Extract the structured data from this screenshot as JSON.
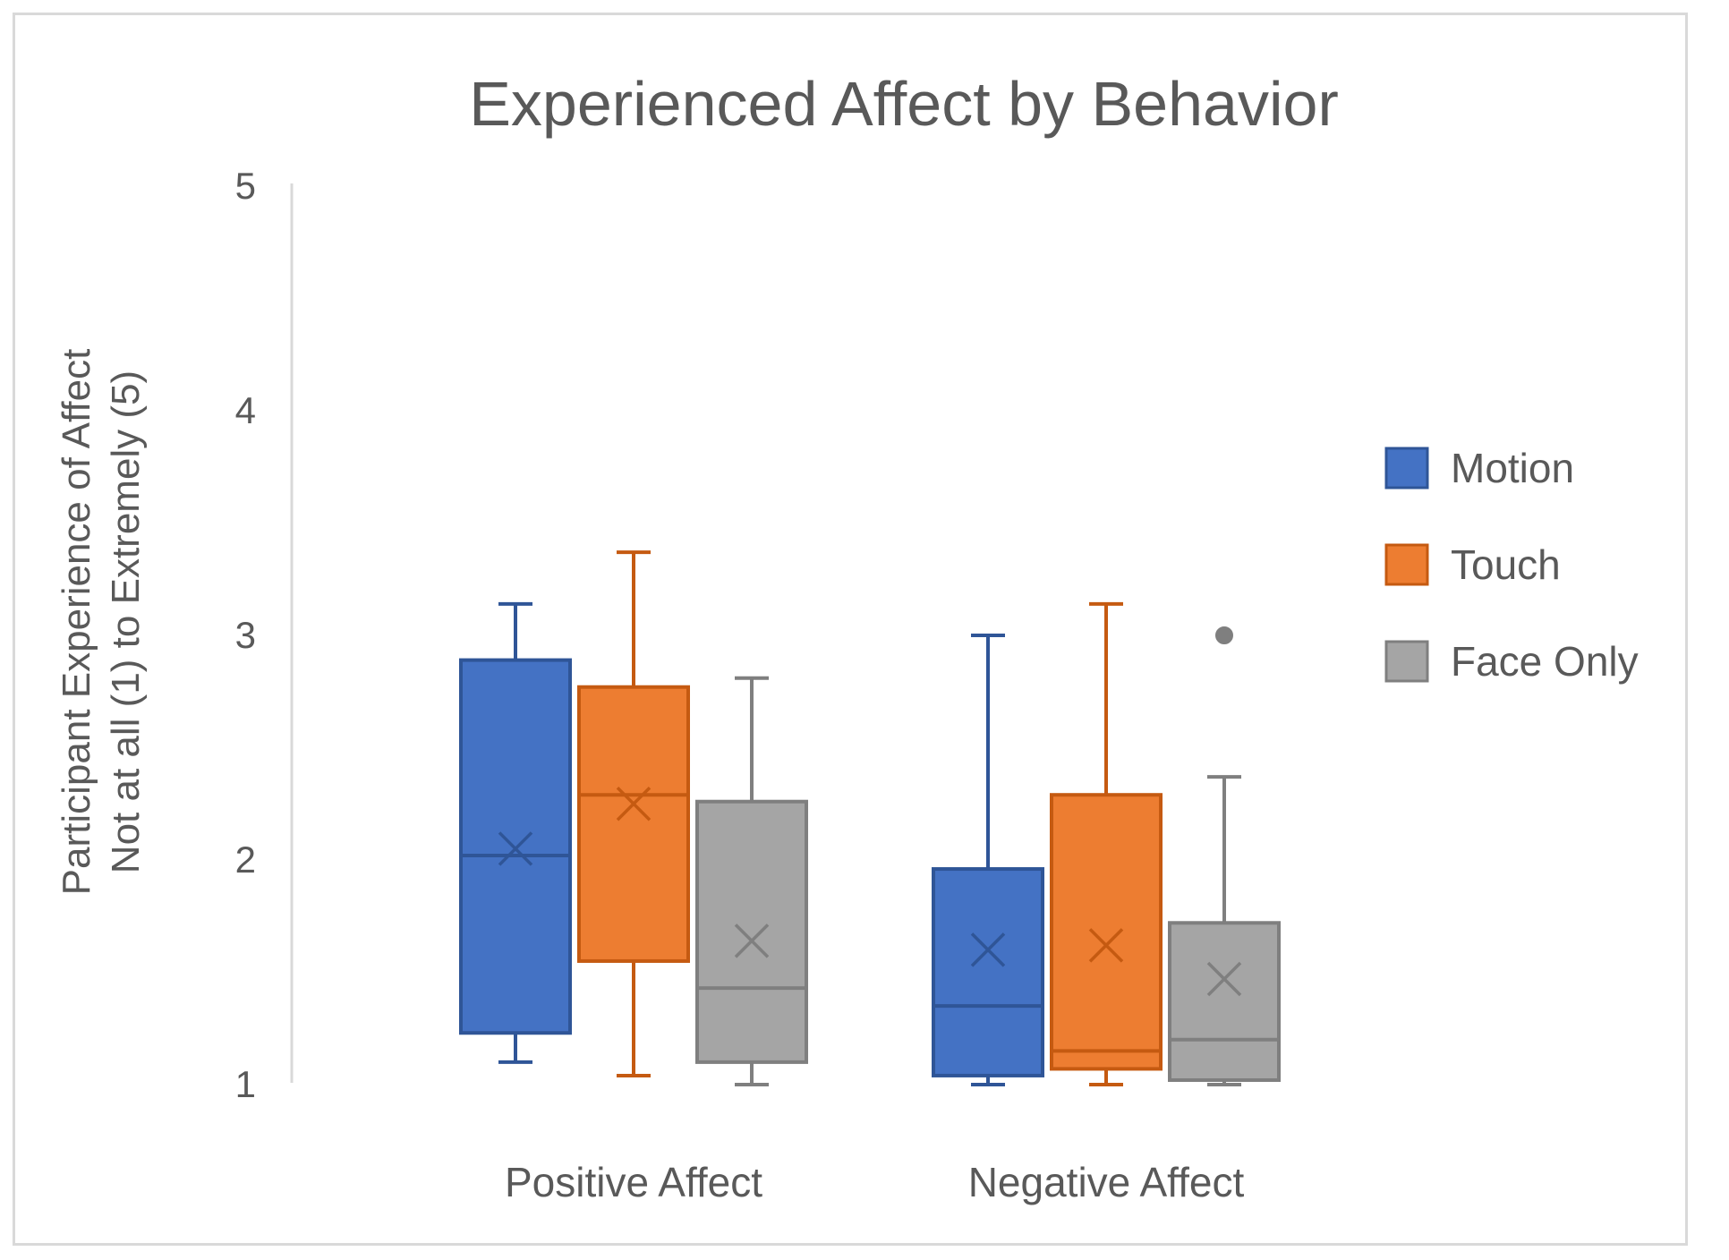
{
  "chart_data": {
    "type": "box",
    "title": "Experienced Affect by Behavior",
    "ylabel_lines": [
      "Participant Experience of Affect",
      "Not at all (1) to Extremely (5)"
    ],
    "xlabel": "",
    "ylim": [
      1,
      5
    ],
    "yticks": [
      1,
      2,
      3,
      4,
      5
    ],
    "categories": [
      "Positive Affect",
      "Negative Affect"
    ],
    "legend_position": "right",
    "grid": false,
    "series": [
      {
        "name": "Motion",
        "color": "#4472C4",
        "stroke": "#2F5597",
        "boxes": [
          {
            "min": 1.1,
            "q1": 1.23,
            "median": 2.02,
            "q3": 2.89,
            "max": 3.14,
            "mean": 2.05,
            "outliers": []
          },
          {
            "min": 1.0,
            "q1": 1.04,
            "median": 1.35,
            "q3": 1.96,
            "max": 3.0,
            "mean": 1.6,
            "outliers": []
          }
        ]
      },
      {
        "name": "Touch",
        "color": "#ED7D31",
        "stroke": "#C55A11",
        "boxes": [
          {
            "min": 1.04,
            "q1": 1.55,
            "median": 2.29,
            "q3": 2.77,
            "max": 3.37,
            "mean": 2.25,
            "outliers": []
          },
          {
            "min": 1.0,
            "q1": 1.07,
            "median": 1.15,
            "q3": 2.29,
            "max": 3.14,
            "mean": 1.62,
            "outliers": []
          }
        ]
      },
      {
        "name": "Face Only",
        "color": "#A5A5A5",
        "stroke": "#7F7F7F",
        "boxes": [
          {
            "min": 1.0,
            "q1": 1.1,
            "median": 1.43,
            "q3": 2.26,
            "max": 2.81,
            "mean": 1.64,
            "outliers": []
          },
          {
            "min": 1.0,
            "q1": 1.02,
            "median": 1.2,
            "q3": 1.72,
            "max": 2.37,
            "mean": 1.47,
            "outliers": [
              3.0
            ]
          }
        ]
      }
    ]
  }
}
